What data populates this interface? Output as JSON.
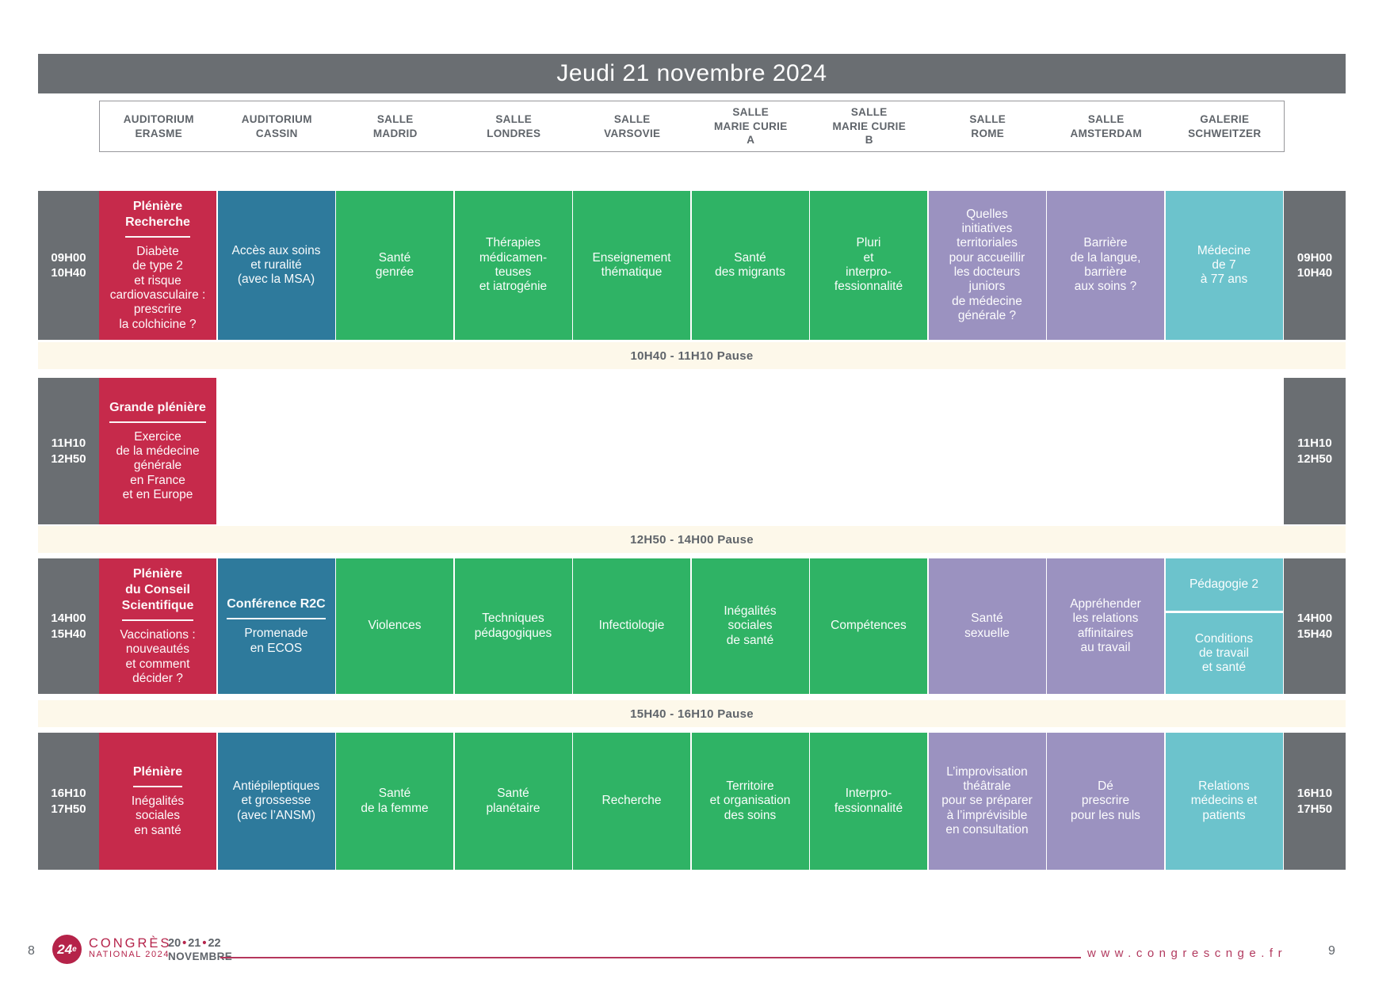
{
  "title": "Jeudi 21 novembre 2024",
  "columns": [
    "AUDITORIUM\nERASME",
    "AUDITORIUM\nCASSIN",
    "SALLE\nMADRID",
    "SALLE\nLONDRES",
    "SALLE\nVARSOVIE",
    "SALLE\nMARIE CURIE\nA",
    "SALLE\nMARIE CURIE\nB",
    "SALLE\nROME",
    "SALLE\nAMSTERDAM",
    "GALERIE\nSCHWEITZER"
  ],
  "colors": {
    "red": "#c62a4b",
    "blue": "#2e7a9c",
    "green": "#2fb365",
    "purple": "#9b92c0",
    "teal": "#6cc3cc",
    "gray": "#6a6e72",
    "cream": "#fdf8ea"
  },
  "rows": [
    {
      "time": "09H00\n10H40",
      "sessions": [
        {
          "col": 0,
          "color": "red",
          "heading": "Plénière\nRecherche",
          "title": "Diabète\nde type 2\net risque\ncardiovasculaire :\nprescrire\nla colchicine ?"
        },
        {
          "col": 1,
          "color": "blue",
          "title": "Accès aux soins\net ruralité\n(avec la MSA)"
        },
        {
          "col": 2,
          "color": "green",
          "title": "Santé\ngenrée"
        },
        {
          "col": 3,
          "color": "green",
          "title": "Thérapies\nmédicamen-\nteuses\net iatrogénie"
        },
        {
          "col": 4,
          "color": "green",
          "title": "Enseignement\nthématique"
        },
        {
          "col": 5,
          "color": "green",
          "title": "Santé\ndes migrants"
        },
        {
          "col": 6,
          "color": "green",
          "title": "Pluri\net\ninterpro-\nfessionnalité"
        },
        {
          "col": 7,
          "color": "purple",
          "title": "Quelles\ninitiatives\nterritoriales\npour accueillir\nles docteurs\njuniors\nde médecine\ngénérale ?"
        },
        {
          "col": 8,
          "color": "purple",
          "title": "Barrière\nde la langue,\nbarrière\naux soins ?"
        },
        {
          "col": 9,
          "color": "teal",
          "title": "Médecine\nde 7\nà 77 ans"
        }
      ]
    },
    {
      "time": "11H10\n12H50",
      "sessions": [
        {
          "col": 0,
          "color": "red",
          "heading": "Grande plénière",
          "title": "Exercice\nde la médecine\ngénérale\nen France\net en Europe"
        }
      ]
    },
    {
      "time": "14H00\n15H40",
      "sessions": [
        {
          "col": 0,
          "color": "red",
          "heading": "Plénière\ndu Conseil\nScientifique",
          "title": "Vaccinations :\nnouveautés\net comment\ndécider ?"
        },
        {
          "col": 1,
          "color": "blue",
          "heading": "Conférence R2C",
          "title": "Promenade\nen ECOS"
        },
        {
          "col": 2,
          "color": "green",
          "title": "Violences"
        },
        {
          "col": 3,
          "color": "green",
          "title": "Techniques\npédagogiques"
        },
        {
          "col": 4,
          "color": "green",
          "title": "Infectiologie"
        },
        {
          "col": 5,
          "color": "green",
          "title": "Inégalités\nsociales\nde santé"
        },
        {
          "col": 6,
          "color": "green",
          "title": "Compétences"
        },
        {
          "col": 7,
          "color": "purple",
          "title": "Santé\nsexuelle"
        },
        {
          "col": 8,
          "color": "purple",
          "title": "Appréhender\nles relations\naffinitaires\nau travail"
        },
        {
          "col": 9,
          "color": "teal",
          "split": [
            "Pédagogie 2",
            "Conditions\nde travail\net santé"
          ]
        }
      ]
    },
    {
      "time": "16H10\n17H50",
      "sessions": [
        {
          "col": 0,
          "color": "red",
          "heading": "Plénière",
          "title": "Inégalités\nsociales\nen santé"
        },
        {
          "col": 1,
          "color": "blue",
          "title": "Antiépileptiques\net grossesse\n(avec l’ANSM)"
        },
        {
          "col": 2,
          "color": "green",
          "title": "Santé\nde la femme"
        },
        {
          "col": 3,
          "color": "green",
          "title": "Santé\nplanétaire"
        },
        {
          "col": 4,
          "color": "green",
          "title": "Recherche"
        },
        {
          "col": 5,
          "color": "green",
          "title": "Territoire\net organisation\ndes soins"
        },
        {
          "col": 6,
          "color": "green",
          "title": "Interpro-\nfessionnalité"
        },
        {
          "col": 7,
          "color": "purple",
          "title": "L’improvisation\nthéâtrale\npour se préparer\nà l’imprévisible\nen consultation"
        },
        {
          "col": 8,
          "color": "purple",
          "title": "Dé\nprescrire\npour les nuls"
        },
        {
          "col": 9,
          "color": "teal",
          "title": "Relations\nmédecins et\npatients"
        }
      ]
    }
  ],
  "pauses": [
    "10H40 - 11H10 Pause",
    "12H50 - 14H00 Pause",
    "15H40 - 16H10 Pause"
  ],
  "footer": {
    "page_left": "8",
    "page_right": "9",
    "logo_number": "24",
    "logo_sup": "e",
    "brand_line1": "CONGRÈS",
    "brand_line2": "NATIONAL 2024",
    "dates": [
      "20",
      "21",
      "22"
    ],
    "dot": "•",
    "month": "NOVEMBRE",
    "website": "www.congrescnge.fr"
  }
}
